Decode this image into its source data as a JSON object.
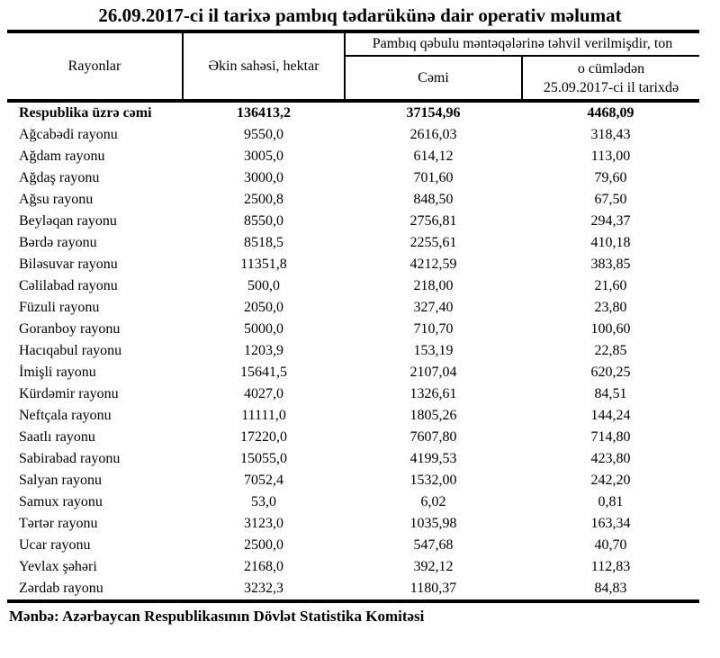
{
  "title": "26.09.2017-ci il tarixə pambıq tədarükünə dair operativ məlumat",
  "table": {
    "columns": {
      "districts": "Rayonlar",
      "sown_area": "Əkin sahəsi, hektar",
      "delivered_group": "Pambıq qəbulu məntəqələrinə təhvil verilmişdir, ton",
      "total": "Cəmi",
      "on_date": "o cümlədən\n25.09.2017-ci il tarixdə"
    },
    "rows": [
      {
        "name": "Respublika üzrə cəmi",
        "area": "136413,2",
        "total": "37154,96",
        "on_date": "4468,09",
        "bold": true
      },
      {
        "name": "Ağcabədi rayonu",
        "area": "9550,0",
        "total": "2616,03",
        "on_date": "318,43"
      },
      {
        "name": "Ağdam rayonu",
        "area": "3005,0",
        "total": "614,12",
        "on_date": "113,00"
      },
      {
        "name": "Ağdaş rayonu",
        "area": "3000,0",
        "total": "701,60",
        "on_date": "79,60"
      },
      {
        "name": "Ağsu rayonu",
        "area": "2500,8",
        "total": "848,50",
        "on_date": "67,50"
      },
      {
        "name": "Beyləqan rayonu",
        "area": "8550,0",
        "total": "2756,81",
        "on_date": "294,37"
      },
      {
        "name": "Bərdə rayonu",
        "area": "8518,5",
        "total": "2255,61",
        "on_date": "410,18"
      },
      {
        "name": "Biləsuvar rayonu",
        "area": "11351,8",
        "total": "4212,59",
        "on_date": "383,85"
      },
      {
        "name": "Cəlilabad rayonu",
        "area": "500,0",
        "total": "218,00",
        "on_date": "21,60"
      },
      {
        "name": "Füzuli rayonu",
        "area": "2050,0",
        "total": "327,40",
        "on_date": "23,80"
      },
      {
        "name": "Goranboy rayonu",
        "area": "5000,0",
        "total": "710,70",
        "on_date": "100,60"
      },
      {
        "name": "Hacıqabul rayonu",
        "area": "1203,9",
        "total": "153,19",
        "on_date": "22,85"
      },
      {
        "name": "İmişli rayonu",
        "area": "15641,5",
        "total": "2107,04",
        "on_date": "620,25"
      },
      {
        "name": "Kürdəmir rayonu",
        "area": "4027,0",
        "total": "1326,61",
        "on_date": "84,51"
      },
      {
        "name": "Neftçala rayonu",
        "area": "11111,0",
        "total": "1805,26",
        "on_date": "144,24"
      },
      {
        "name": "Saatlı rayonu",
        "area": "17220,0",
        "total": "7607,80",
        "on_date": "714,80"
      },
      {
        "name": "Sabirabad rayonu",
        "area": "15055,0",
        "total": "4199,53",
        "on_date": "423,80"
      },
      {
        "name": "Salyan rayonu",
        "area": "7052,4",
        "total": "1532,00",
        "on_date": "242,20"
      },
      {
        "name": "Samux rayonu",
        "area": "53,0",
        "total": "6,02",
        "on_date": "0,81"
      },
      {
        "name": "Tərtər rayonu",
        "area": "3123,0",
        "total": "1035,98",
        "on_date": "163,34"
      },
      {
        "name": "Ucar rayonu",
        "area": "2500,0",
        "total": "547,68",
        "on_date": "40,70"
      },
      {
        "name": "Yevlax şəhəri",
        "area": "2168,0",
        "total": "392,12",
        "on_date": "112,83"
      },
      {
        "name": "Zərdab rayonu",
        "area": "3232,3",
        "total": "1180,37",
        "on_date": "84,83"
      }
    ]
  },
  "footer": {
    "source": "Mənbə: Azərbaycan Respublikasının Dövlət Statistika Komitəsi"
  }
}
